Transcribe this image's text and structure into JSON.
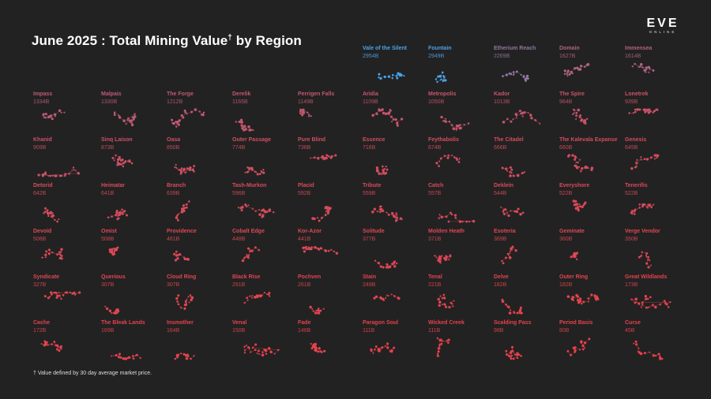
{
  "title": {
    "main": "June 2025 : Total Mining Value",
    "mark": "†",
    "tail": " by Region"
  },
  "logo": {
    "mark": "EVE",
    "sub": "ONLINE"
  },
  "footnote": "† Value defined by 30 day average market price.",
  "colors": {
    "background": "#222222",
    "high": "#4aa3e8",
    "low": "#e8404a"
  },
  "chart_data": {
    "type": "small-multiples",
    "title": "June 2025 : Total Mining Value† by Region",
    "unit": "B",
    "regions": [
      {
        "name": "Vale of the Silent",
        "value": 2954
      },
      {
        "name": "Fountain",
        "value": 2949
      },
      {
        "name": "Etherium Reach",
        "value": 2269
      },
      {
        "name": "Domain",
        "value": 1627
      },
      {
        "name": "Immensea",
        "value": 1614
      },
      {
        "name": "Impass",
        "value": 1334
      },
      {
        "name": "Malpais",
        "value": 1330
      },
      {
        "name": "The Forge",
        "value": 1212
      },
      {
        "name": "Derelik",
        "value": 1165
      },
      {
        "name": "Perrigen Falls",
        "value": 1149
      },
      {
        "name": "Aridia",
        "value": 1109
      },
      {
        "name": "Metropolis",
        "value": 1050
      },
      {
        "name": "Kador",
        "value": 1013
      },
      {
        "name": "The Spire",
        "value": 964
      },
      {
        "name": "Lonetrek",
        "value": 939
      },
      {
        "name": "Khanid",
        "value": 909
      },
      {
        "name": "Sinq Laison",
        "value": 873
      },
      {
        "name": "Oasa",
        "value": 850
      },
      {
        "name": "Outer Passage",
        "value": 774
      },
      {
        "name": "Pure Blind",
        "value": 736
      },
      {
        "name": "Essence",
        "value": 716
      },
      {
        "name": "Feythabolis",
        "value": 674
      },
      {
        "name": "The Citadel",
        "value": 666
      },
      {
        "name": "The Kalevala Expanse",
        "value": 660
      },
      {
        "name": "Genesis",
        "value": 645
      },
      {
        "name": "Detorid",
        "value": 642
      },
      {
        "name": "Heimatar",
        "value": 641
      },
      {
        "name": "Branch",
        "value": 639
      },
      {
        "name": "Tash-Murkon",
        "value": 596
      },
      {
        "name": "Placid",
        "value": 592
      },
      {
        "name": "Tribute",
        "value": 559
      },
      {
        "name": "Catch",
        "value": 557
      },
      {
        "name": "Deklein",
        "value": 544
      },
      {
        "name": "Everyshore",
        "value": 522
      },
      {
        "name": "Tenerifis",
        "value": 522
      },
      {
        "name": "Devoid",
        "value": 508
      },
      {
        "name": "Omist",
        "value": 508
      },
      {
        "name": "Providence",
        "value": 461
      },
      {
        "name": "Cobalt Edge",
        "value": 448
      },
      {
        "name": "Kor-Azor",
        "value": 441
      },
      {
        "name": "Solitude",
        "value": 377
      },
      {
        "name": "Molden Heath",
        "value": 371
      },
      {
        "name": "Esoteria",
        "value": 369
      },
      {
        "name": "Geminate",
        "value": 360
      },
      {
        "name": "Verge Vendor",
        "value": 350
      },
      {
        "name": "Syndicate",
        "value": 327
      },
      {
        "name": "Querious",
        "value": 307
      },
      {
        "name": "Cloud Ring",
        "value": 307
      },
      {
        "name": "Black Rise",
        "value": 291
      },
      {
        "name": "Pochven",
        "value": 261
      },
      {
        "name": "Stain",
        "value": 249
      },
      {
        "name": "Tenal",
        "value": 221
      },
      {
        "name": "Delve",
        "value": 182
      },
      {
        "name": "Outer Ring",
        "value": 182
      },
      {
        "name": "Great Wildlands",
        "value": 173
      },
      {
        "name": "Cache",
        "value": 172
      },
      {
        "name": "The Bleak Lands",
        "value": 169
      },
      {
        "name": "Insmother",
        "value": 164
      },
      {
        "name": "Venal",
        "value": 150
      },
      {
        "name": "Fade",
        "value": 146
      },
      {
        "name": "Paragon Soul",
        "value": 111
      },
      {
        "name": "Wicked Creek",
        "value": 111
      },
      {
        "name": "Scalding Pass",
        "value": 98
      },
      {
        "name": "Period Basis",
        "value": 80
      },
      {
        "name": "Curse",
        "value": 45
      }
    ]
  }
}
